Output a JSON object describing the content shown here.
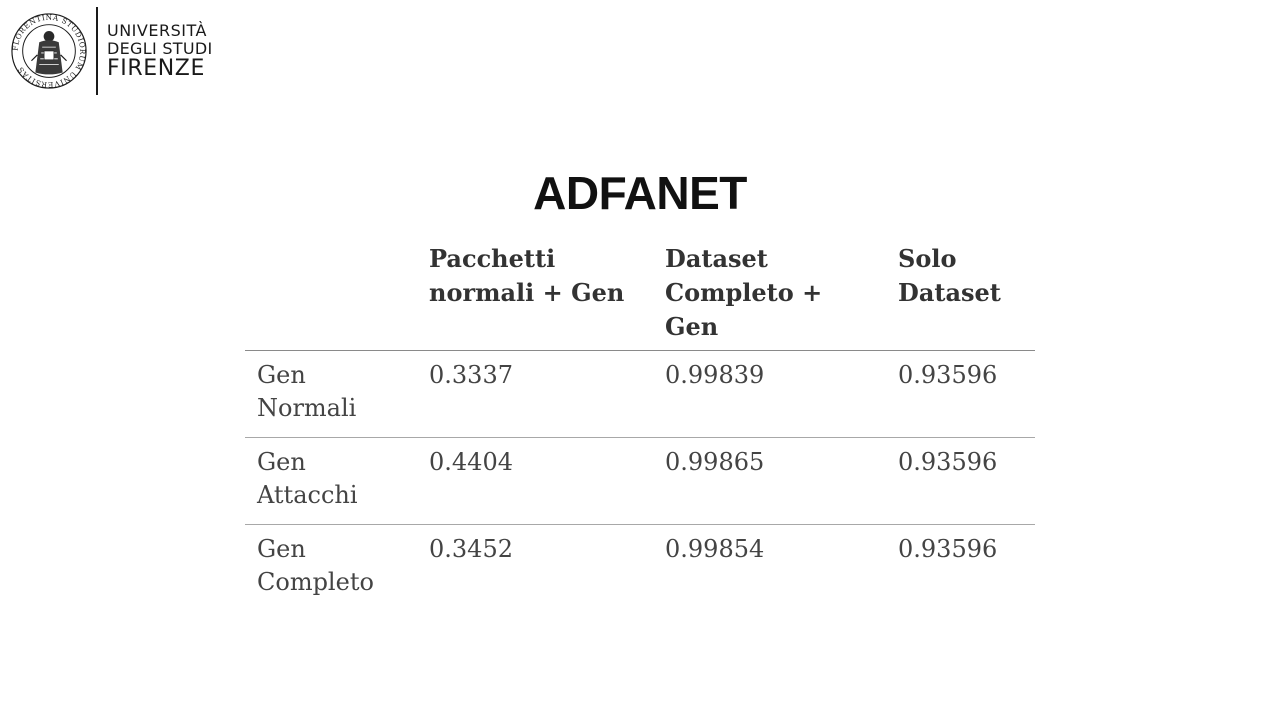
{
  "logo": {
    "line1": "UNIVERSITÀ",
    "line2": "DEGLI STUDI",
    "line3": "FIRENZE",
    "seal_text": "FLORENTINA STUDIORUM UNIVERSITAS"
  },
  "title": "ADFANET",
  "table": {
    "corner": "",
    "headers": [
      {
        "line1": "Pacchetti",
        "line2": "normali + Gen"
      },
      {
        "line1": "Dataset",
        "line2": "Completo + Gen"
      },
      {
        "line1": "Solo",
        "line2": "Dataset"
      }
    ],
    "rows": [
      {
        "label_line1": "Gen",
        "label_line2": "Normali",
        "cells": [
          "0.3337",
          "0.99839",
          "0.93596"
        ]
      },
      {
        "label_line1": "Gen",
        "label_line2": "Attacchi",
        "cells": [
          "0.4404",
          "0.99865",
          "0.93596"
        ],
        "highlight_index": 1
      },
      {
        "label_line1": "Gen",
        "label_line2": "Completo",
        "cells": [
          "0.3452",
          "0.99854",
          "0.93596"
        ]
      }
    ]
  },
  "colors": {
    "text_dark": "#111111",
    "table_text": "#444444",
    "rule": "#8a8a8a"
  }
}
